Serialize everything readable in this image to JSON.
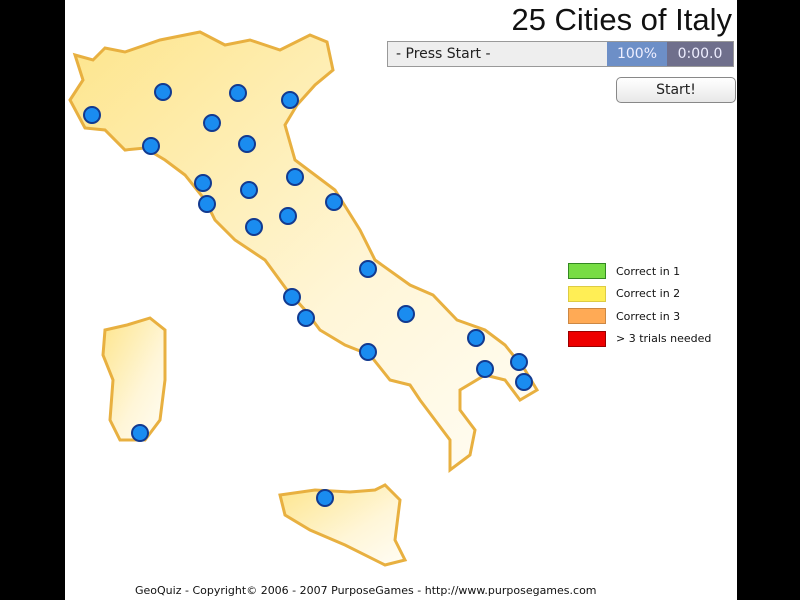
{
  "title": "25 Cities of Italy",
  "status": "- Press Start -",
  "progress_percent": "100%",
  "timer": "0:00.0",
  "start_label": "Start!",
  "legend": [
    {
      "label": "Correct in 1",
      "color": "#77dd44",
      "border": "#338822"
    },
    {
      "label": "Correct in 2",
      "color": "#ffee55",
      "border": "#ddcc44"
    },
    {
      "label": "Correct in 3",
      "color": "#ffaa55",
      "border": "#cc8844"
    },
    {
      "label": "> 3 trials needed",
      "color": "#ee0000",
      "border": "#990000"
    }
  ],
  "city_count": 25,
  "footer": "GeoQuiz - Copyright© 2006 - 2007 PurposeGames - http://www.purposegames.com",
  "colors": {
    "land": "#fdeeb8",
    "border": "#e8b040",
    "dot": "#1a8cf0",
    "dot_border": "#123a90"
  }
}
